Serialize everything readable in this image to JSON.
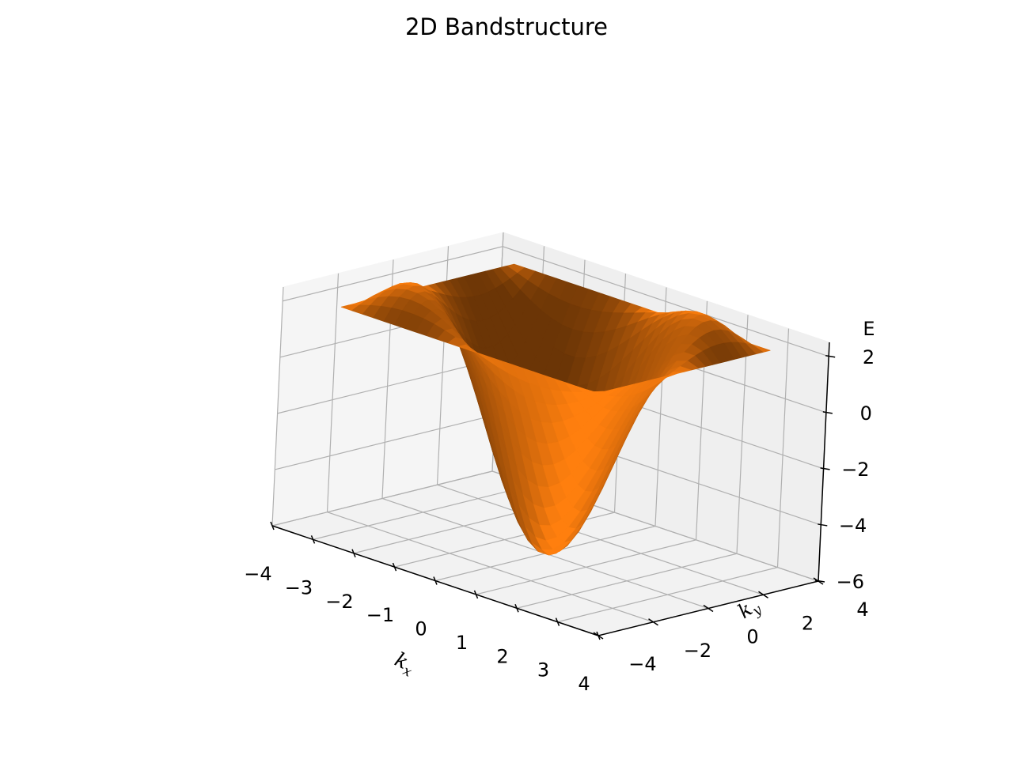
{
  "chart_data": {
    "type": "surface",
    "title": "2D Bandstructure",
    "xlabel": "k_x",
    "ylabel": "k_y",
    "zlabel": "E",
    "xlim": [
      -4,
      4
    ],
    "ylim": [
      -4,
      4
    ],
    "zlim": [
      -6,
      2.5
    ],
    "x_ticks": [
      "−4",
      "−3",
      "−2",
      "−1",
      "0",
      "1",
      "2",
      "3",
      "4"
    ],
    "y_ticks": [
      "−4",
      "−2",
      "0",
      "2",
      "4"
    ],
    "z_ticks": [
      "−6",
      "−4",
      "−2",
      "0",
      "2"
    ],
    "function": "E = -2cos(kx) - 2cos(ky) - 2cos(kx+ky)",
    "domain": [
      -3.14159,
      3.14159
    ],
    "grid_points": 25,
    "surface_color": "#ff7f0e",
    "grid": true
  }
}
